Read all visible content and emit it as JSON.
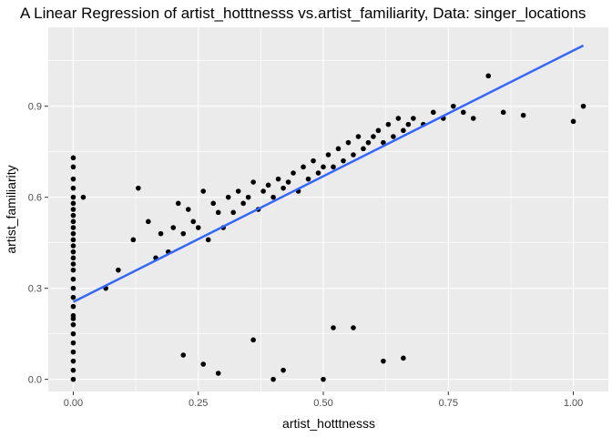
{
  "chart_data": {
    "type": "scatter",
    "title": "A Linear Regression of artist_hotttnesss vs.artist_familiarity, Data: singer_locations",
    "xlabel": "artist_hotttnesss",
    "ylabel": "artist_familiarity",
    "xlim": [
      -0.05,
      1.07
    ],
    "ylim": [
      -0.04,
      1.16
    ],
    "x_ticks": [
      0.0,
      0.25,
      0.5,
      0.75,
      1.0
    ],
    "x_tick_labels": [
      "0.00",
      "0.25",
      "0.50",
      "0.75",
      "1.00"
    ],
    "y_ticks": [
      0.0,
      0.3,
      0.6,
      0.9
    ],
    "y_tick_labels": [
      "0.0",
      "0.3",
      "0.6",
      "0.9"
    ],
    "grid": true,
    "background": "#ebebeb",
    "point_color": "#000000",
    "regression_line": {
      "color": "#3366ff",
      "x": [
        0.0,
        1.02
      ],
      "y": [
        0.255,
        1.1
      ]
    },
    "points": {
      "x": [
        0,
        0,
        0,
        0,
        0,
        0,
        0,
        0,
        0,
        0,
        0,
        0,
        0,
        0,
        0,
        0,
        0,
        0,
        0,
        0,
        0,
        0,
        0,
        0,
        0,
        0,
        0,
        0,
        0,
        0,
        0.02,
        0.065,
        0.09,
        0.12,
        0.13,
        0.15,
        0.165,
        0.175,
        0.19,
        0.2,
        0.21,
        0.22,
        0.23,
        0.24,
        0.25,
        0.26,
        0.27,
        0.28,
        0.29,
        0.3,
        0.31,
        0.32,
        0.33,
        0.34,
        0.35,
        0.36,
        0.37,
        0.38,
        0.39,
        0.4,
        0.41,
        0.42,
        0.43,
        0.44,
        0.45,
        0.46,
        0.47,
        0.48,
        0.49,
        0.5,
        0.51,
        0.52,
        0.53,
        0.54,
        0.55,
        0.56,
        0.57,
        0.58,
        0.59,
        0.6,
        0.61,
        0.62,
        0.63,
        0.64,
        0.65,
        0.66,
        0.67,
        0.68,
        0.7,
        0.72,
        0.74,
        0.76,
        0.78,
        0.8,
        0.83,
        0.86,
        0.9,
        1.0,
        1.02,
        0.22,
        0.26,
        0.29,
        0.36,
        0.4,
        0.42,
        0.5,
        0.52,
        0.56,
        0.62,
        0.66
      ],
      "y": [
        0.0,
        0.03,
        0.06,
        0.09,
        0.12,
        0.15,
        0.18,
        0.21,
        0.24,
        0.27,
        0.3,
        0.33,
        0.36,
        0.38,
        0.4,
        0.42,
        0.44,
        0.46,
        0.48,
        0.5,
        0.52,
        0.54,
        0.56,
        0.58,
        0.6,
        0.63,
        0.66,
        0.7,
        0.73,
        0.2,
        0.6,
        0.3,
        0.36,
        0.46,
        0.63,
        0.52,
        0.4,
        0.48,
        0.42,
        0.5,
        0.58,
        0.48,
        0.56,
        0.52,
        0.5,
        0.62,
        0.46,
        0.58,
        0.55,
        0.5,
        0.6,
        0.55,
        0.62,
        0.58,
        0.6,
        0.65,
        0.56,
        0.62,
        0.64,
        0.6,
        0.66,
        0.63,
        0.65,
        0.68,
        0.62,
        0.7,
        0.66,
        0.72,
        0.68,
        0.7,
        0.74,
        0.7,
        0.76,
        0.72,
        0.78,
        0.74,
        0.8,
        0.76,
        0.78,
        0.8,
        0.82,
        0.78,
        0.84,
        0.8,
        0.86,
        0.82,
        0.84,
        0.86,
        0.84,
        0.88,
        0.86,
        0.9,
        0.88,
        0.86,
        1.0,
        0.88,
        0.87,
        0.85,
        0.9,
        0.08,
        0.05,
        0.02,
        0.13,
        0.0,
        0.03,
        0.0,
        0.17,
        0.17,
        0.06,
        0.07
      ]
    }
  }
}
